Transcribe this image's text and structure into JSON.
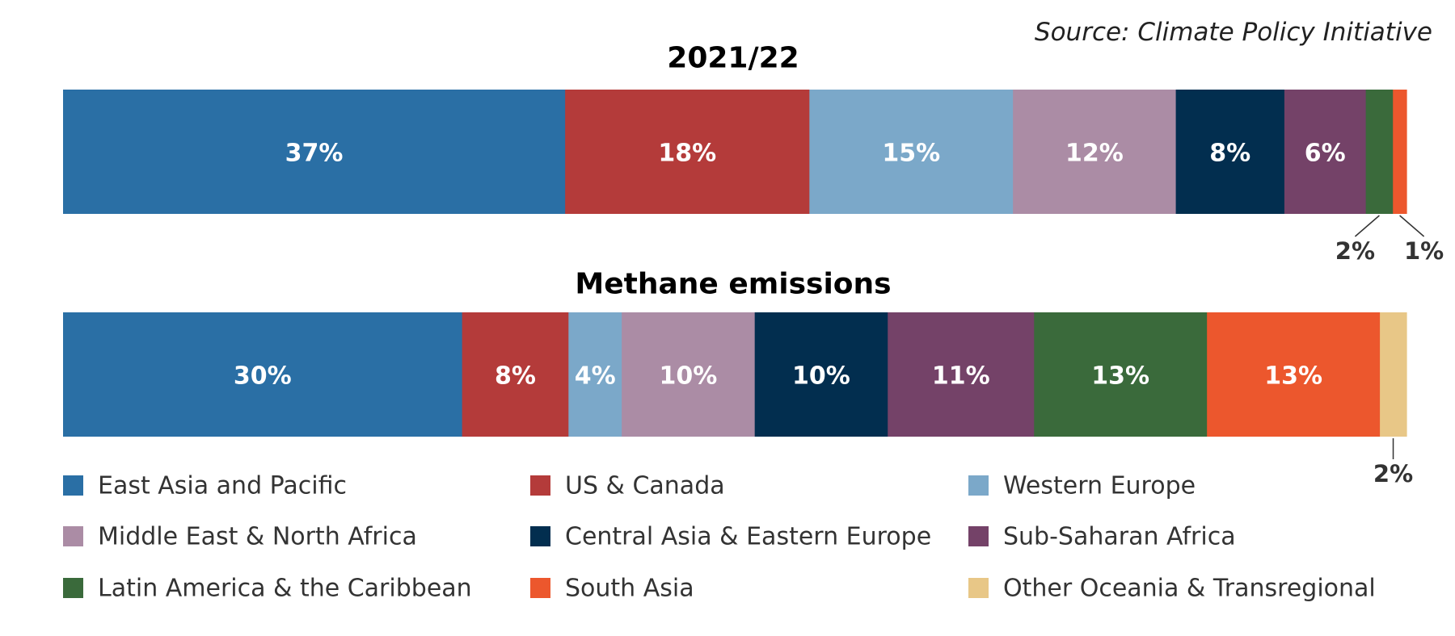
{
  "source": "Source: Climate Policy Initiative",
  "legend": [
    {
      "name": "East Asia and Pacific",
      "color": "#2a6fa5"
    },
    {
      "name": "US & Canada",
      "color": "#b43b3a"
    },
    {
      "name": "Western Europe",
      "color": "#7ba8c9"
    },
    {
      "name": "Middle East & North Africa",
      "color": "#ab8ca5"
    },
    {
      "name": "Central Asia & Eastern Europe",
      "color": "#022e4f"
    },
    {
      "name": "Sub-Saharan Africa",
      "color": "#744268"
    },
    {
      "name": "Latin America & the Caribbean",
      "color": "#3a6a3b"
    },
    {
      "name": "South Asia",
      "color": "#ec572d"
    },
    {
      "name": "Other Oceania & Transregional",
      "color": "#e8c787"
    }
  ],
  "chart_data": [
    {
      "type": "bar",
      "orientation": "horizontal-stacked-100",
      "title": "2021/22",
      "categories": [
        "East Asia and Pacific",
        "US & Canada",
        "Western Europe",
        "Middle East & North Africa",
        "Central Asia & Eastern Europe",
        "Sub-Saharan Africa",
        "Latin America & the Caribbean",
        "South Asia"
      ],
      "values": [
        37,
        18,
        15,
        12,
        8,
        6,
        2,
        1
      ],
      "labels": [
        "37%",
        "18%",
        "15%",
        "12%",
        "8%",
        "6%",
        "2%",
        "1%"
      ],
      "label_outside": [
        false,
        false,
        false,
        false,
        false,
        false,
        true,
        true
      ]
    },
    {
      "type": "bar",
      "orientation": "horizontal-stacked-100",
      "title": "Methane emissions",
      "categories": [
        "East Asia and Pacific",
        "US & Canada",
        "Western Europe",
        "Middle East & North Africa",
        "Central Asia & Eastern Europe",
        "Sub-Saharan Africa",
        "Latin America & the Caribbean",
        "South Asia",
        "Other Oceania & Transregional"
      ],
      "values": [
        30,
        8,
        4,
        10,
        10,
        11,
        13,
        13,
        2
      ],
      "labels": [
        "30%",
        "8%",
        "4%",
        "10%",
        "10%",
        "11%",
        "13%",
        "13%",
        "2%"
      ],
      "label_outside": [
        false,
        false,
        false,
        false,
        false,
        false,
        false,
        false,
        true
      ]
    }
  ]
}
